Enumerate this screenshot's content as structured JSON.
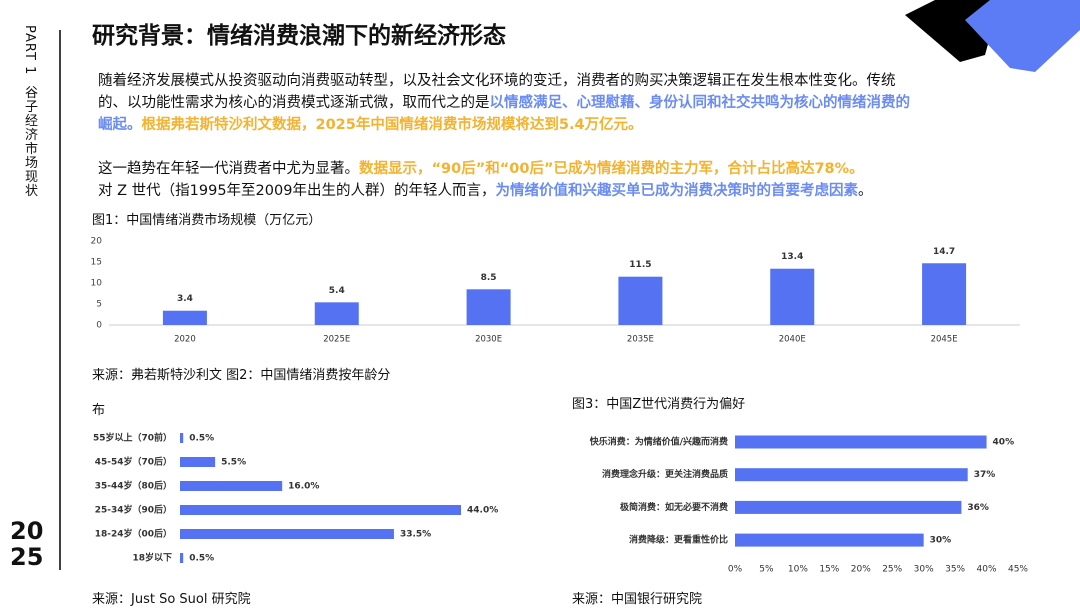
{
  "header": {
    "title": "研究背景：情绪消费浪潮下的新经济形态"
  },
  "sidebar": {
    "part": "PART 1",
    "section": "谷子经济市场现状",
    "year_top": "20",
    "year_bottom": "25"
  },
  "paragraphs": [
    [
      {
        "text": "随着经济发展模式从投资驱动向消费驱动转型，以及社会文化环境的变迁，消费者的购买决策逻辑正在发生根本性变化。传统的、以功能性需求为核心的消费模式逐渐式微，取而代之的是"
      },
      {
        "text": "以情感满足、心理慰藉、身份认同和社交共鸣为核心的情绪消费的崛起。",
        "color": "#6a8cf4"
      },
      {
        "text": "根据弗若斯特沙利文数据，2025年中国情绪消费市场规模将达到5.4万亿元。",
        "color": "#f3b230"
      }
    ],
    [
      {
        "text": "这一趋势在年轻一代消费者中尤为显著。"
      },
      {
        "text": "数据显示，“90后”和“00后”已成为情绪消费的主力军，合计占比高达78%。",
        "color": "#f3b230"
      }
    ],
    [
      {
        "text": "对 Z 世代（指1995年至2009年出生的人群）的年轻人而言，"
      },
      {
        "text": "为情绪价值和兴趣买单已成为消费决策时的首要考虑因素",
        "color": "#6a8cf4"
      },
      {
        "text": "。"
      }
    ]
  ],
  "chart_data": [
    {
      "type": "bar",
      "title": "图1：中国情绪消费市场规模（万亿元）",
      "source": "来源：弗若斯特沙利文",
      "categories": [
        "2020",
        "2025E",
        "2030E",
        "2035E",
        "2040E",
        "2045E"
      ],
      "values": [
        3.4,
        5.4,
        8.5,
        11.5,
        13.4,
        14.7
      ],
      "color": "#5472f2",
      "ylim": [
        0,
        20
      ],
      "yticks": [
        0,
        5,
        10,
        15,
        20
      ]
    },
    {
      "type": "hbar",
      "title": "图2：中国情绪消费按年龄分布",
      "source": "来源：Just So Suol 研究院",
      "categories": [
        "55岁以上（70前）",
        "45-54岁（70后）",
        "35-44岁（80后）",
        "25-34岁（90后）",
        "18-24岁（00后）",
        "18岁以下"
      ],
      "values": [
        0.5,
        5.5,
        16.0,
        44.0,
        33.5,
        0.5
      ],
      "value_labels": [
        "0.5%",
        "5.5%",
        "16.0%",
        "44.0%",
        "33.5%",
        "0.5%"
      ],
      "color": "#5472f2"
    },
    {
      "type": "hbar",
      "title": "图3：中国Z世代消费行为偏好",
      "source": "来源：中国银行研究院",
      "categories": [
        "快乐消费：为情绪价值/兴趣而消费",
        "消费理念升级：更关注消费品质",
        "极简消费：如无必要不消费",
        "消费降级：更看重性价比"
      ],
      "values": [
        40,
        37,
        36,
        30
      ],
      "value_labels": [
        "40%",
        "37%",
        "36%",
        "30%"
      ],
      "color": "#5472f2",
      "xlim": [
        0,
        45
      ],
      "xticks": [
        {
          "value": 0,
          "label": "0%"
        },
        {
          "value": 5,
          "label": "5%"
        },
        {
          "value": 10,
          "label": "10%"
        },
        {
          "value": 15,
          "label": "15%"
        },
        {
          "value": 20,
          "label": "20%"
        },
        {
          "value": 25,
          "label": "25%"
        },
        {
          "value": 30,
          "label": "30%"
        },
        {
          "value": 35,
          "label": "35%"
        },
        {
          "value": 40,
          "label": "40%"
        },
        {
          "value": 45,
          "label": "45%"
        }
      ]
    }
  ]
}
